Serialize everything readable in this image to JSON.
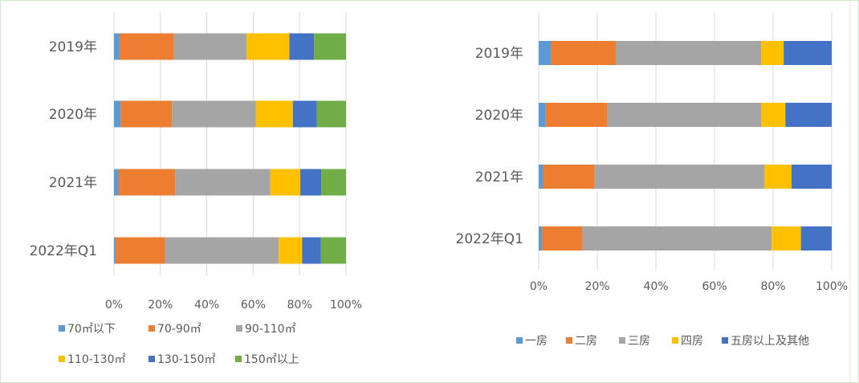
{
  "chart_data": [
    {
      "type": "bar",
      "orientation": "horizontal",
      "stacked": "percent",
      "categories": [
        "2019年",
        "2020年",
        "2021年",
        "2022年Q1"
      ],
      "series": [
        {
          "name": "70㎡以下",
          "color": "#5b9bd5",
          "values": [
            2.4,
            2.9,
            1.9,
            0.7
          ]
        },
        {
          "name": "70-90㎡",
          "color": "#ed7d31",
          "values": [
            23.4,
            22.1,
            24.5,
            21.3
          ]
        },
        {
          "name": "90-110㎡",
          "color": "#a5a5a5",
          "values": [
            31.4,
            36.2,
            41.0,
            49.0
          ]
        },
        {
          "name": "110-130㎡",
          "color": "#ffc000",
          "values": [
            18.4,
            15.9,
            12.9,
            10.1
          ]
        },
        {
          "name": "130-150㎡",
          "color": "#4472c4",
          "values": [
            10.6,
            10.3,
            9.0,
            8.1
          ]
        },
        {
          "name": "150㎡以上",
          "color": "#70ad47",
          "values": [
            13.8,
            12.6,
            10.7,
            10.8
          ]
        }
      ],
      "xticks": [
        "0%",
        "20%",
        "40%",
        "60%",
        "80%",
        "100%"
      ],
      "xlim": [
        0,
        100
      ],
      "grid": true,
      "legend": "bottom"
    },
    {
      "type": "bar",
      "orientation": "horizontal",
      "stacked": "percent",
      "categories": [
        "2019年",
        "2020年",
        "2021年",
        "2022年Q1"
      ],
      "series": [
        {
          "name": "一房",
          "color": "#5b9bd5",
          "values": [
            4.1,
            2.4,
            1.5,
            1.1
          ]
        },
        {
          "name": "二房",
          "color": "#ed7d31",
          "values": [
            22.2,
            21.1,
            17.6,
            13.9
          ]
        },
        {
          "name": "三房",
          "color": "#a5a5a5",
          "values": [
            49.6,
            52.5,
            58.0,
            64.5
          ]
        },
        {
          "name": "四房",
          "color": "#ffc000",
          "values": [
            7.7,
            8.2,
            9.2,
            10.0
          ]
        },
        {
          "name": "五房以上及其他",
          "color": "#4472c4",
          "values": [
            16.4,
            15.8,
            13.7,
            10.5
          ]
        }
      ],
      "xticks": [
        "0%",
        "20%",
        "40%",
        "60%",
        "80%",
        "100%"
      ],
      "xlim": [
        0,
        100
      ],
      "grid": true,
      "legend": "bottom"
    }
  ]
}
